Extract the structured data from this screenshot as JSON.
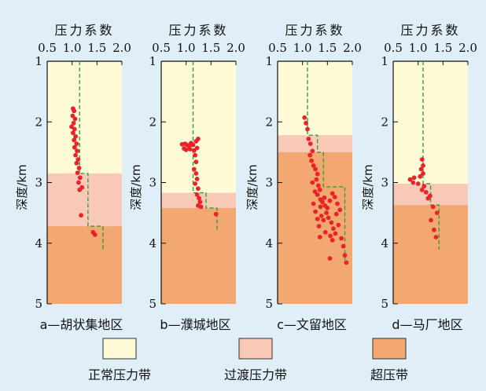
{
  "chart_data": [
    {
      "type": "scatter",
      "caption": "a—胡状集地区",
      "top_title": "压力系数",
      "ylabel": "深度/km",
      "x_ticks": [
        "0.5",
        "1.0",
        "1.5",
        "2.0"
      ],
      "y_ticks": [
        "1",
        "2",
        "3",
        "4",
        "5"
      ],
      "xlim": [
        0.5,
        2.0
      ],
      "ylim": [
        1,
        5
      ],
      "zones": [
        {
          "kind": "normal",
          "from_km": 1.0,
          "to_km": 2.85
        },
        {
          "kind": "transition",
          "from_km": 2.85,
          "to_km": 3.72
        },
        {
          "kind": "over",
          "from_km": 3.72,
          "to_km": 5.0
        }
      ],
      "trend_line": [
        [
          1.15,
          1.0
        ],
        [
          1.15,
          2.85
        ],
        [
          1.32,
          2.85
        ],
        [
          1.32,
          3.72
        ],
        [
          1.62,
          3.72
        ],
        [
          1.62,
          4.1
        ]
      ],
      "points": [
        [
          1.02,
          1.78
        ],
        [
          1.04,
          1.82
        ],
        [
          1.01,
          1.9
        ],
        [
          1.06,
          1.95
        ],
        [
          1.03,
          2.02
        ],
        [
          0.99,
          2.08
        ],
        [
          1.05,
          2.12
        ],
        [
          1.02,
          2.18
        ],
        [
          1.07,
          2.24
        ],
        [
          1.04,
          2.3
        ],
        [
          1.09,
          2.36
        ],
        [
          1.05,
          2.42
        ],
        [
          1.1,
          2.48
        ],
        [
          1.07,
          2.55
        ],
        [
          1.12,
          2.62
        ],
        [
          1.09,
          2.68
        ],
        [
          1.14,
          2.76
        ],
        [
          1.11,
          2.84
        ],
        [
          1.16,
          2.92
        ],
        [
          1.13,
          3.0
        ],
        [
          1.2,
          3.08
        ],
        [
          1.15,
          3.12
        ],
        [
          1.18,
          3.54
        ],
        [
          1.42,
          3.82
        ],
        [
          1.46,
          3.86
        ]
      ]
    },
    {
      "type": "scatter",
      "caption": "b—濮城地区",
      "top_title": "压力系数",
      "ylabel": "深度/km",
      "x_ticks": [
        "0.5",
        "1.0",
        "1.5",
        "2.0"
      ],
      "y_ticks": [
        "1",
        "2",
        "3",
        "4",
        "5"
      ],
      "xlim": [
        0.5,
        2.0
      ],
      "ylim": [
        1,
        5
      ],
      "zones": [
        {
          "kind": "normal",
          "from_km": 1.0,
          "to_km": 3.17
        },
        {
          "kind": "transition",
          "from_km": 3.17,
          "to_km": 3.42
        },
        {
          "kind": "over",
          "from_km": 3.42,
          "to_km": 5.0
        }
      ],
      "trend_line": [
        [
          1.14,
          1.0
        ],
        [
          1.14,
          3.17
        ],
        [
          1.4,
          3.17
        ],
        [
          1.4,
          3.42
        ],
        [
          1.62,
          3.42
        ],
        [
          1.62,
          3.78
        ]
      ],
      "points": [
        [
          0.92,
          2.37
        ],
        [
          0.98,
          2.36
        ],
        [
          1.02,
          2.38
        ],
        [
          1.06,
          2.4
        ],
        [
          1.1,
          2.35
        ],
        [
          1.14,
          2.38
        ],
        [
          1.2,
          2.32
        ],
        [
          1.24,
          2.28
        ],
        [
          0.96,
          2.44
        ],
        [
          1.0,
          2.46
        ],
        [
          1.08,
          2.45
        ],
        [
          1.16,
          2.47
        ],
        [
          1.22,
          2.43
        ],
        [
          1.18,
          2.55
        ],
        [
          1.2,
          2.66
        ],
        [
          1.16,
          2.78
        ],
        [
          1.2,
          2.85
        ],
        [
          1.22,
          2.94
        ],
        [
          1.18,
          3.02
        ],
        [
          1.24,
          3.1
        ],
        [
          1.22,
          3.2
        ],
        [
          1.26,
          3.26
        ],
        [
          1.28,
          3.32
        ],
        [
          1.24,
          3.38
        ],
        [
          1.3,
          3.4
        ],
        [
          1.6,
          3.52
        ]
      ]
    },
    {
      "type": "scatter",
      "caption": "c—文留地区",
      "top_title": "压力系数",
      "ylabel": "深度/km",
      "x_ticks": [
        "0.5",
        "1.0",
        "1.5",
        "2.0"
      ],
      "y_ticks": [
        "1",
        "2",
        "3",
        "4",
        "5"
      ],
      "xlim": [
        0.5,
        2.0
      ],
      "ylim": [
        1,
        5
      ],
      "zones": [
        {
          "kind": "normal",
          "from_km": 1.0,
          "to_km": 2.22
        },
        {
          "kind": "transition",
          "from_km": 2.22,
          "to_km": 2.5
        },
        {
          "kind": "over",
          "from_km": 2.5,
          "to_km": 5.0
        }
      ],
      "trend_line": [
        [
          1.1,
          1.0
        ],
        [
          1.1,
          2.22
        ],
        [
          1.3,
          2.22
        ],
        [
          1.3,
          2.5
        ],
        [
          1.42,
          2.5
        ],
        [
          1.42,
          3.07
        ],
        [
          1.85,
          3.07
        ],
        [
          1.85,
          4.28
        ]
      ],
      "points": [
        [
          1.04,
          1.93
        ],
        [
          1.07,
          2.02
        ],
        [
          1.1,
          2.12
        ],
        [
          1.12,
          2.28
        ],
        [
          1.16,
          2.36
        ],
        [
          1.2,
          2.48
        ],
        [
          1.15,
          2.55
        ],
        [
          1.18,
          2.64
        ],
        [
          1.22,
          2.72
        ],
        [
          1.26,
          2.78
        ],
        [
          1.3,
          2.86
        ],
        [
          1.28,
          2.95
        ],
        [
          1.32,
          3.05
        ],
        [
          1.35,
          3.12
        ],
        [
          1.3,
          3.2
        ],
        [
          1.36,
          3.28
        ],
        [
          1.4,
          3.32
        ],
        [
          1.45,
          3.38
        ],
        [
          1.5,
          3.42
        ],
        [
          1.55,
          3.3
        ],
        [
          1.6,
          3.18
        ],
        [
          1.65,
          3.24
        ],
        [
          1.7,
          3.35
        ],
        [
          1.48,
          3.5
        ],
        [
          1.38,
          3.55
        ],
        [
          1.42,
          3.62
        ],
        [
          1.52,
          3.58
        ],
        [
          1.58,
          3.66
        ],
        [
          1.68,
          3.52
        ],
        [
          1.75,
          3.45
        ],
        [
          1.72,
          3.7
        ],
        [
          1.62,
          3.76
        ],
        [
          1.46,
          3.82
        ],
        [
          1.56,
          3.88
        ],
        [
          1.66,
          3.84
        ],
        [
          1.33,
          3.72
        ],
        [
          1.26,
          3.48
        ],
        [
          1.22,
          3.35
        ],
        [
          1.25,
          3.15
        ],
        [
          1.36,
          3.4
        ],
        [
          1.44,
          3.25
        ],
        [
          1.6,
          3.95
        ],
        [
          1.78,
          3.92
        ],
        [
          1.82,
          4.05
        ],
        [
          1.55,
          4.25
        ],
        [
          1.85,
          4.2
        ],
        [
          1.88,
          4.32
        ],
        [
          1.35,
          3.9
        ],
        [
          1.2,
          3.0
        ],
        [
          1.3,
          3.6
        ]
      ]
    },
    {
      "type": "scatter",
      "caption": "d—马厂地区",
      "top_title": "压力系数",
      "ylabel": "深度/km",
      "x_ticks": [
        "0.5",
        "1.0",
        "1.5",
        "2.0"
      ],
      "y_ticks": [
        "1",
        "2",
        "3",
        "4",
        "5"
      ],
      "xlim": [
        0.5,
        2.0
      ],
      "ylim": [
        1,
        5
      ],
      "zones": [
        {
          "kind": "normal",
          "from_km": 1.0,
          "to_km": 3.02
        },
        {
          "kind": "transition",
          "from_km": 3.02,
          "to_km": 3.37
        },
        {
          "kind": "over",
          "from_km": 3.37,
          "to_km": 5.0
        }
      ],
      "trend_line": [
        [
          1.1,
          1.0
        ],
        [
          1.1,
          3.02
        ],
        [
          1.25,
          3.02
        ],
        [
          1.25,
          3.37
        ],
        [
          1.42,
          3.37
        ],
        [
          1.42,
          4.1
        ]
      ],
      "points": [
        [
          1.08,
          2.62
        ],
        [
          1.1,
          2.72
        ],
        [
          1.06,
          2.78
        ],
        [
          1.1,
          2.85
        ],
        [
          1.04,
          2.9
        ],
        [
          0.92,
          2.92
        ],
        [
          0.84,
          2.95
        ],
        [
          0.9,
          3.0
        ],
        [
          1.0,
          3.02
        ],
        [
          1.12,
          3.06
        ],
        [
          1.08,
          3.12
        ],
        [
          1.16,
          3.16
        ],
        [
          1.24,
          3.22
        ],
        [
          1.2,
          3.26
        ],
        [
          1.3,
          3.4
        ],
        [
          1.38,
          3.5
        ],
        [
          1.26,
          3.62
        ],
        [
          1.32,
          3.78
        ],
        [
          1.36,
          3.9
        ]
      ]
    }
  ],
  "legend": [
    {
      "label": "正常压力带",
      "color": "#fefbd6"
    },
    {
      "label": "过渡压力带",
      "color": "#f9c9b8"
    },
    {
      "label": "超压带",
      "color": "#f3a771"
    }
  ],
  "colors": {
    "background": "#dfeef7",
    "point": "#e8242a",
    "trend": "#2ea043",
    "normal": "#fefbd6",
    "transition": "#f9c9b8",
    "over": "#f3a771"
  }
}
